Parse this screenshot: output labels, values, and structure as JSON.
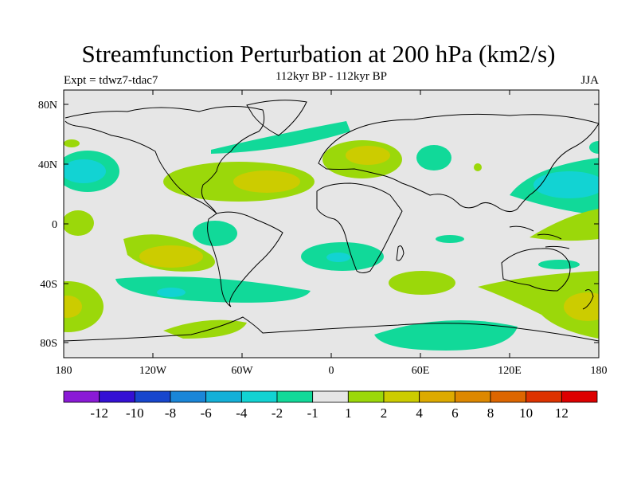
{
  "title": "Streamfunction Perturbation at 200 hPa (km2/s)",
  "experiment": "Expt = tdwz7-tdac7",
  "period": "112kyr BP - 112kyr BP",
  "season": "JJA",
  "lat_ticks": [
    "80N",
    "40N",
    "0",
    "40S",
    "80S"
  ],
  "lon_ticks": [
    "180",
    "120W",
    "60W",
    "0",
    "60E",
    "120E",
    "180"
  ],
  "colorbar": {
    "colors": [
      "#8a1ad6",
      "#3410d4",
      "#1746cd",
      "#1a86d8",
      "#14b0d8",
      "#12d3d3",
      "#11d999",
      "#e6e6e6",
      "#9bd80a",
      "#cccc00",
      "#ddaa00",
      "#dd8800",
      "#dd6600",
      "#dd3300",
      "#dd0000"
    ],
    "labels": [
      "-12",
      "-10",
      "-8",
      "-6",
      "-4",
      "-2",
      "-1",
      "1",
      "2",
      "4",
      "6",
      "8",
      "10",
      "12"
    ]
  }
}
